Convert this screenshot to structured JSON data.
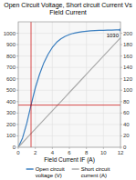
{
  "chart_data": {
    "type": "line",
    "title": "Open Circuit Voltage, Short circuit Current Vs Field Current",
    "x_label": "Field Current IF (A)",
    "x": [
      0,
      0.5,
      1.0,
      1.5,
      2.0,
      2.5,
      3.0,
      3.5,
      4.0,
      4.5,
      5.0,
      5.5,
      6.0,
      6.5,
      7.0,
      7.5,
      8.0,
      8.5,
      9.0,
      9.5,
      10.0,
      10.5,
      11.0,
      11.5,
      12.0
    ],
    "series": [
      {
        "name": "Open circuit\nvoltage (V)",
        "color": "#3a7ebf",
        "values": [
          0,
          80,
          210,
          370,
          520,
          640,
          740,
          815,
          875,
          920,
          950,
          972,
          988,
          1000,
          1008,
          1014,
          1018,
          1021,
          1023,
          1025,
          1026,
          1027,
          1028,
          1029,
          1030
        ]
      },
      {
        "name": "Short circuit\ncurrent (A)",
        "color": "#aaaaaa",
        "axis": "y2",
        "values": [
          0,
          8,
          16,
          24,
          32,
          40,
          48,
          56,
          64,
          72,
          80,
          88,
          96,
          104,
          112,
          120,
          128,
          136,
          144,
          152,
          160,
          168,
          176,
          184,
          192
        ]
      }
    ],
    "xlim": [
      0,
      12
    ],
    "xticks": [
      0,
      2,
      4,
      6,
      8,
      10,
      12
    ],
    "ylim": [
      0,
      1100
    ],
    "yticks": [
      0,
      100,
      200,
      300,
      400,
      500,
      600,
      700,
      800,
      900,
      1000
    ],
    "y2lim": [
      0,
      220
    ],
    "y2ticks": [
      0,
      20,
      40,
      60,
      80,
      100,
      120,
      140,
      160,
      180,
      200
    ],
    "reference_lines": [
      {
        "axis": "x",
        "value": 1.5,
        "color": "#cc0000"
      },
      {
        "axis": "y",
        "value": 370,
        "color": "#cc0000"
      }
    ],
    "annotations": [
      {
        "text": "1030",
        "x": 12.0,
        "y": 1030
      }
    ],
    "grid": true,
    "legend": "bottom"
  }
}
